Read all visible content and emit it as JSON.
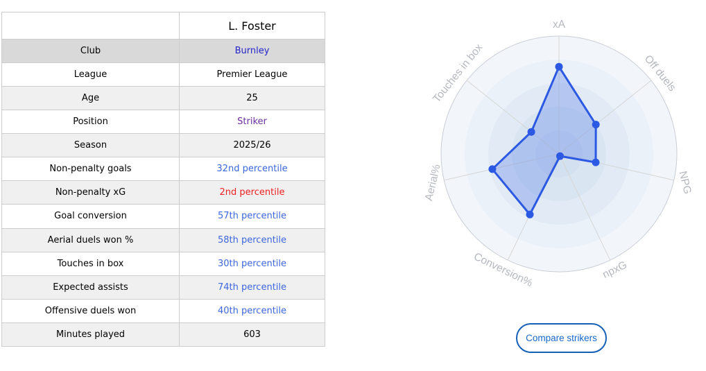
{
  "player_table": {
    "name": "L. Foster",
    "highlighted_row": "Club",
    "rows": [
      {
        "label": "Club",
        "value": "Burnley",
        "value_style": "link"
      },
      {
        "label": "League",
        "value": "Premier League",
        "value_style": "plain"
      },
      {
        "label": "Age",
        "value": "25",
        "value_style": "plain"
      },
      {
        "label": "Position",
        "value": "Striker",
        "value_style": "visited"
      },
      {
        "label": "Season",
        "value": "2025/26",
        "value_style": "plain"
      },
      {
        "label": "Non-penalty goals",
        "value": "32nd percentile",
        "value_style": "blue"
      },
      {
        "label": "Non-penalty xG",
        "value": "2nd percentile",
        "value_style": "red"
      },
      {
        "label": "Goal conversion",
        "value": "57th percentile",
        "value_style": "blue"
      },
      {
        "label": "Aerial duels won %",
        "value": "58th percentile",
        "value_style": "blue"
      },
      {
        "label": "Touches in box",
        "value": "30th percentile",
        "value_style": "blue"
      },
      {
        "label": "Expected assists",
        "value": "74th percentile",
        "value_style": "blue"
      },
      {
        "label": "Offensive duels won",
        "value": "40th percentile",
        "value_style": "blue"
      },
      {
        "label": "Minutes played",
        "value": "603",
        "value_style": "plain"
      }
    ]
  },
  "chart_data": {
    "type": "radar",
    "categories": [
      "xA",
      "Off duels",
      "NPG",
      "npxG",
      "Conversion%",
      "Aerial%",
      "Touches in box"
    ],
    "values": [
      74,
      40,
      32,
      2,
      57,
      58,
      30
    ],
    "rmax": 100,
    "rings": 5,
    "grid": true,
    "legend": false,
    "line_color": "#2b59e3",
    "fill_color": "#4d74e8",
    "fill_opacity": 0.3,
    "marker_radius": 5.5,
    "ring_colors": [
      "#f2f6fa",
      "#eaf1f8",
      "#e2ebf5",
      "#dae5f2",
      "#d3e0ef"
    ],
    "spoke_color": "#d6d6d6",
    "outline_color": "#c9cdd6",
    "label_color": "#b4b8bf",
    "label_rotations": [
      0,
      51,
      77,
      -26,
      26,
      -77,
      -51
    ]
  },
  "compare_button": {
    "label": "Compare strikers"
  },
  "colors": {
    "link_blue": "#2424cc",
    "visited_purple": "#6b2fa0",
    "percentile_blue": "#3c66e0",
    "percentile_red": "#ee2020",
    "button_blue": "#1460b8"
  }
}
